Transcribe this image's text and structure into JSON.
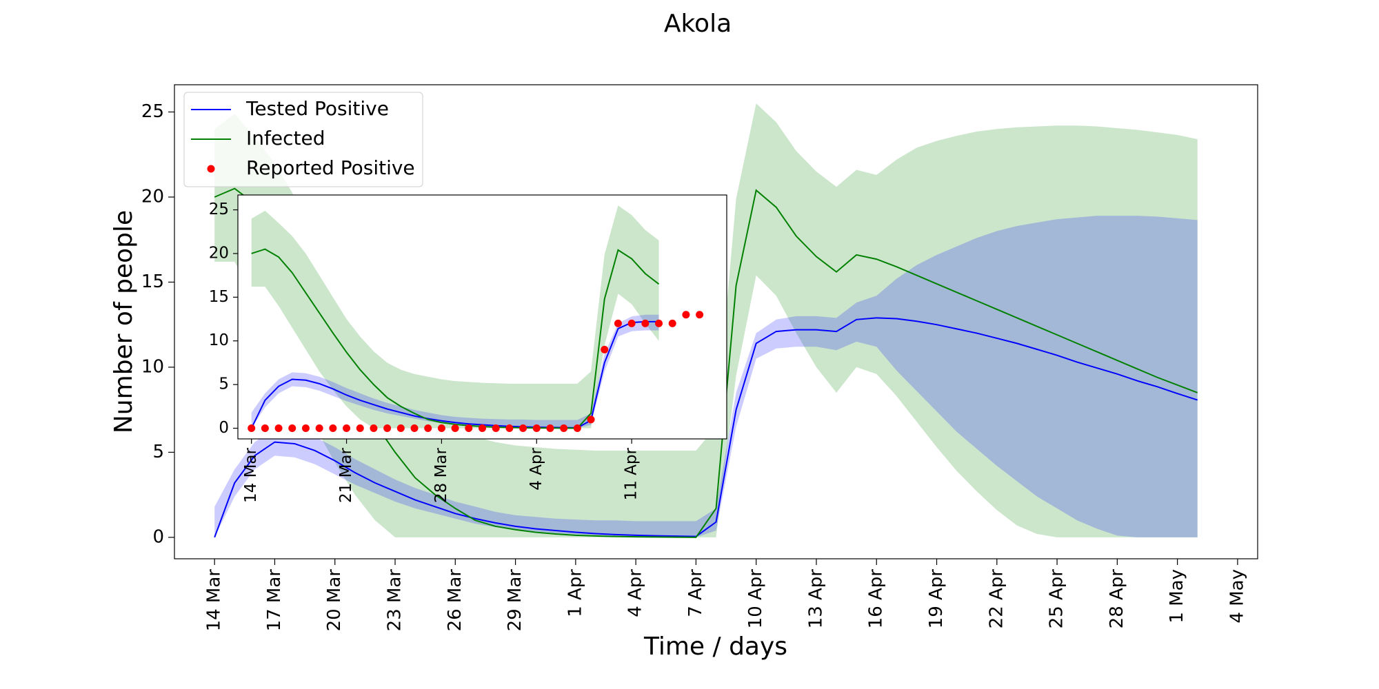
{
  "chart_data": [
    {
      "type": "line",
      "title": "Akola",
      "xlabel": "Time / days",
      "ylabel": "Number of people",
      "legend": "upper left",
      "x": [
        "14 Mar",
        "15 Mar",
        "16 Mar",
        "17 Mar",
        "18 Mar",
        "19 Mar",
        "20 Mar",
        "21 Mar",
        "22 Mar",
        "23 Mar",
        "24 Mar",
        "25 Mar",
        "26 Mar",
        "27 Mar",
        "28 Mar",
        "29 Mar",
        "30 Mar",
        "31 Mar",
        "1 Apr",
        "2 Apr",
        "3 Apr",
        "4 Apr",
        "5 Apr",
        "6 Apr",
        "7 Apr",
        "8 Apr",
        "9 Apr",
        "10 Apr",
        "11 Apr",
        "12 Apr",
        "13 Apr",
        "14 Apr",
        "15 Apr",
        "16 Apr",
        "17 Apr",
        "18 Apr",
        "19 Apr",
        "20 Apr",
        "21 Apr",
        "22 Apr",
        "23 Apr",
        "24 Apr",
        "25 Apr",
        "26 Apr",
        "27 Apr",
        "28 Apr",
        "29 Apr",
        "30 Apr",
        "1 May",
        "2 May"
      ],
      "xlim": [
        "12 Mar",
        "5 May"
      ],
      "xticks": [
        "14 Mar",
        "17 Mar",
        "20 Mar",
        "23 Mar",
        "26 Mar",
        "29 Mar",
        "1 Apr",
        "4 Apr",
        "7 Apr",
        "10 Apr",
        "13 Apr",
        "16 Apr",
        "19 Apr",
        "22 Apr",
        "25 Apr",
        "28 Apr",
        "1 May",
        "4 May"
      ],
      "ylim": [
        -1.26,
        26.6
      ],
      "yticks": [
        0,
        5,
        10,
        15,
        20,
        25
      ],
      "band_opacity": 0.2,
      "series": [
        {
          "name": "Tested Positive",
          "color": "#0000ff",
          "style": "line",
          "values": [
            0,
            3.2,
            4.8,
            5.6,
            5.5,
            5.1,
            4.5,
            3.8,
            3.2,
            2.7,
            2.2,
            1.8,
            1.4,
            1.1,
            0.85,
            0.65,
            0.5,
            0.4,
            0.3,
            0.22,
            0.16,
            0.12,
            0.09,
            0.07,
            0.05,
            0.9,
            7.5,
            11.4,
            12.1,
            12.2,
            12.2,
            12.1,
            12.8,
            12.9,
            12.85,
            12.7,
            12.5,
            12.25,
            12.0,
            11.7,
            11.4,
            11.05,
            10.7,
            10.3,
            9.95,
            9.6,
            9.2,
            8.85,
            8.45,
            8.07
          ],
          "lower": [
            0,
            2.4,
            4.0,
            4.8,
            4.7,
            4.3,
            3.7,
            3.1,
            2.6,
            2.1,
            1.7,
            1.4,
            1.1,
            0.8,
            0.6,
            0.45,
            0.35,
            0.25,
            0.18,
            0.13,
            0.09,
            0.06,
            0.04,
            0.03,
            0,
            0.4,
            6.5,
            10.5,
            11.1,
            11.2,
            11.2,
            11.0,
            11.5,
            11.2,
            9.8,
            8.6,
            7.4,
            6.2,
            5.2,
            4.2,
            3.3,
            2.4,
            1.7,
            1.0,
            0.5,
            0.1,
            0,
            0,
            0,
            0
          ],
          "upper": [
            1.8,
            4.0,
            5.6,
            6.4,
            6.3,
            5.9,
            5.3,
            4.6,
            4.0,
            3.4,
            2.9,
            2.5,
            2.1,
            1.8,
            1.5,
            1.3,
            1.2,
            1.1,
            1.05,
            1.0,
            1.0,
            0.95,
            0.95,
            0.95,
            0.95,
            1.7,
            8.5,
            12.0,
            12.8,
            13.0,
            13.0,
            12.9,
            13.8,
            14.2,
            15.2,
            16.0,
            16.6,
            17.1,
            17.6,
            18.0,
            18.3,
            18.5,
            18.7,
            18.8,
            18.9,
            18.9,
            18.9,
            18.85,
            18.75,
            18.65
          ]
        },
        {
          "name": "Infected",
          "color": "#008000",
          "style": "line",
          "values": [
            20,
            20.5,
            19.6,
            17.8,
            15.5,
            13.2,
            10.9,
            8.7,
            6.7,
            5.0,
            3.5,
            2.5,
            1.7,
            1.0,
            0.65,
            0.45,
            0.3,
            0.2,
            0.12,
            0.08,
            0.05,
            0.03,
            0.02,
            0.01,
            0,
            1.7,
            14.8,
            20.4,
            19.4,
            17.7,
            16.5,
            15.6,
            16.6,
            16.35,
            15.9,
            15.4,
            14.9,
            14.4,
            13.9,
            13.4,
            12.9,
            12.4,
            11.9,
            11.4,
            10.9,
            10.4,
            9.9,
            9.4,
            8.95,
            8.5
          ],
          "lower": [
            16.2,
            16.2,
            14.0,
            11.5,
            9.0,
            6.5,
            4.4,
            2.5,
            1.0,
            0,
            0,
            0,
            0,
            0,
            0,
            0,
            0,
            0,
            0,
            0,
            0,
            0,
            0,
            0,
            0,
            0,
            9.5,
            15.4,
            14.2,
            12.0,
            10.0,
            8.5,
            10.0,
            9.6,
            8.3,
            6.8,
            5.3,
            3.9,
            2.7,
            1.6,
            0.7,
            0.2,
            0,
            0,
            0,
            0,
            0,
            0,
            0,
            0
          ],
          "upper": [
            24.0,
            24.9,
            23.5,
            22.0,
            20.0,
            17.5,
            15.0,
            12.5,
            10.5,
            8.8,
            7.5,
            6.7,
            6.2,
            5.9,
            5.6,
            5.4,
            5.3,
            5.2,
            5.15,
            5.1,
            5.1,
            5.1,
            5.1,
            5.1,
            5.1,
            6.5,
            19.9,
            25.5,
            24.4,
            22.7,
            21.5,
            20.6,
            21.6,
            21.3,
            22.2,
            22.9,
            23.3,
            23.6,
            23.85,
            24.0,
            24.1,
            24.15,
            24.2,
            24.2,
            24.15,
            24.05,
            23.95,
            23.8,
            23.65,
            23.4
          ]
        }
      ]
    },
    {
      "type": "line",
      "x": [
        "14 Mar",
        "15 Mar",
        "16 Mar",
        "17 Mar",
        "18 Mar",
        "19 Mar",
        "20 Mar",
        "21 Mar",
        "22 Mar",
        "23 Mar",
        "24 Mar",
        "25 Mar",
        "26 Mar",
        "27 Mar",
        "28 Mar",
        "29 Mar",
        "30 Mar",
        "31 Mar",
        "1 Apr",
        "2 Apr",
        "3 Apr",
        "4 Apr",
        "5 Apr",
        "6 Apr",
        "7 Apr",
        "8 Apr",
        "9 Apr",
        "10 Apr",
        "11 Apr",
        "12 Apr",
        "13 Apr",
        "14 Apr",
        "15 Apr",
        "16 Apr"
      ],
      "xlim": [
        "13 Mar",
        "18 Apr"
      ],
      "xticks": [
        "14 Mar",
        "21 Mar",
        "28 Mar",
        "4 Apr",
        "11 Apr"
      ],
      "ylim": [
        -1.22,
        26.7
      ],
      "yticks": [
        0,
        5,
        10,
        15,
        20,
        25
      ],
      "band_opacity": 0.2,
      "series": [
        {
          "color": "#0000ff",
          "style": "line",
          "values": [
            0,
            3.2,
            4.8,
            5.6,
            5.5,
            5.1,
            4.5,
            3.8,
            3.2,
            2.7,
            2.2,
            1.8,
            1.4,
            1.1,
            0.85,
            0.65,
            0.5,
            0.4,
            0.3,
            0.22,
            0.16,
            0.12,
            0.09,
            0.07,
            0.05,
            0.9,
            7.5,
            11.4,
            12.1,
            12.2,
            12.2,
            null,
            null,
            null
          ],
          "lower": [
            0,
            2.4,
            4.0,
            4.8,
            4.7,
            4.3,
            3.7,
            3.1,
            2.6,
            2.1,
            1.7,
            1.4,
            1.1,
            0.8,
            0.6,
            0.45,
            0.35,
            0.25,
            0.18,
            0.13,
            0.09,
            0.06,
            0.04,
            0.03,
            0,
            0.4,
            6.5,
            10.5,
            11.1,
            11.2,
            11.2,
            null,
            null,
            null
          ],
          "upper": [
            1.8,
            4.0,
            5.6,
            6.4,
            6.3,
            5.9,
            5.3,
            4.6,
            4.0,
            3.4,
            2.9,
            2.5,
            2.1,
            1.8,
            1.5,
            1.3,
            1.2,
            1.1,
            1.05,
            1.0,
            1.0,
            0.95,
            0.95,
            0.95,
            0.95,
            1.7,
            8.5,
            12.0,
            12.8,
            13.0,
            13.0,
            null,
            null,
            null
          ]
        },
        {
          "color": "#008000",
          "style": "line",
          "values": [
            20,
            20.5,
            19.6,
            17.8,
            15.5,
            13.2,
            10.9,
            8.7,
            6.7,
            5.0,
            3.5,
            2.5,
            1.7,
            1.0,
            0.65,
            0.45,
            0.3,
            0.2,
            0.12,
            0.08,
            0.05,
            0.03,
            0.02,
            0.01,
            0,
            1.7,
            14.8,
            20.4,
            19.4,
            17.7,
            16.5,
            null,
            null,
            null
          ],
          "lower": [
            16.2,
            16.2,
            14.0,
            11.5,
            9.0,
            6.5,
            4.4,
            2.5,
            1.0,
            0,
            0,
            0,
            0,
            0,
            0,
            0,
            0,
            0,
            0,
            0,
            0,
            0,
            0,
            0,
            0,
            0,
            9.5,
            15.4,
            14.2,
            12.0,
            10.0,
            null,
            null,
            null
          ],
          "upper": [
            24.0,
            24.9,
            23.5,
            22.0,
            20.0,
            17.5,
            15.0,
            12.5,
            10.5,
            8.8,
            7.5,
            6.7,
            6.2,
            5.9,
            5.6,
            5.4,
            5.3,
            5.2,
            5.15,
            5.1,
            5.1,
            5.1,
            5.1,
            5.1,
            5.1,
            6.5,
            19.9,
            25.5,
            24.4,
            22.7,
            21.5,
            null,
            null,
            null
          ]
        },
        {
          "name": "Reported Positive",
          "color": "#ff0000",
          "style": "dots",
          "values": [
            0,
            0,
            0,
            0,
            0,
            0,
            0,
            0,
            0,
            0,
            0,
            0,
            0,
            0,
            0,
            0,
            0,
            0,
            0,
            0,
            0,
            0,
            0,
            0,
            0,
            1.0,
            9.0,
            12,
            12,
            12,
            12,
            12,
            13,
            13
          ]
        }
      ]
    }
  ]
}
